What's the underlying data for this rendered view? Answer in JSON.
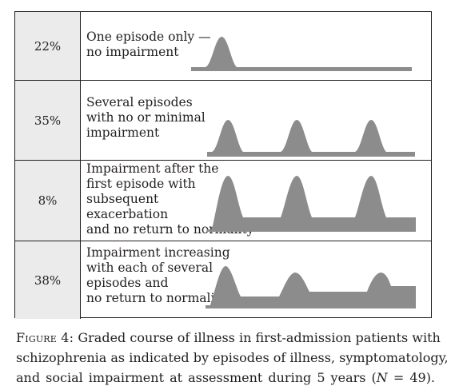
{
  "figure": {
    "rows": [
      {
        "percent": "22%",
        "description_lines": [
          "One episode only —",
          "no impairment"
        ],
        "course": "one-episode-no-impairment"
      },
      {
        "percent": "35%",
        "description_lines": [
          "Several episodes",
          "with no or minimal",
          "impairment"
        ],
        "course": "several-episodes-no-impairment"
      },
      {
        "percent": "8%",
        "description_lines": [
          "Impairment after the",
          "first episode with",
          "subsequent",
          "exacerbation",
          "and no return to normality"
        ],
        "course": "impairment-after-first"
      },
      {
        "percent": "38%",
        "description_lines": [
          "Impairment increasing",
          "with each of several",
          "episodes and",
          "no return to normality"
        ],
        "course": "impairment-increasing"
      }
    ],
    "colors": {
      "course_fill": "#8c8c8c",
      "percent_cell": "#ebebeb",
      "border": "#231f20"
    }
  },
  "caption": {
    "label": "Figure 4:",
    "line1": "Graded course of illness in first-admission patients with",
    "line2": "schizophrenia as indicated by episodes of illness, symptomatology,",
    "line3": "and social impairment at assessment during 5 years (",
    "n_var": "N",
    "n_eq": " = ",
    "n_val": "49",
    "tail": ")."
  }
}
